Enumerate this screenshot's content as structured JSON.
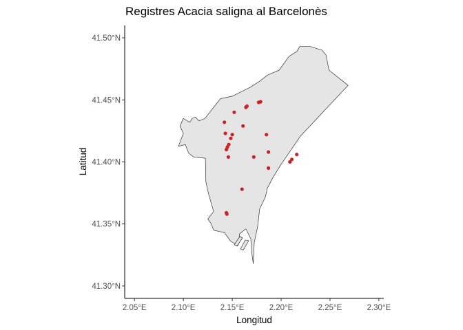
{
  "chart_data": {
    "type": "scatter",
    "title": "Registres Acacia saligna al Barcelonès",
    "xlabel": "Longitud",
    "ylabel": "Latitud",
    "xlim": [
      2.04,
      2.305
    ],
    "ylim": [
      41.29,
      41.51
    ],
    "x_ticks": [
      2.05,
      2.1,
      2.15,
      2.2,
      2.25,
      2.3
    ],
    "x_tick_labels": [
      "2.05°E",
      "2.10°E",
      "2.15°E",
      "2.20°E",
      "2.25°E",
      "2.30°E"
    ],
    "y_ticks": [
      41.3,
      41.35,
      41.4,
      41.45,
      41.5
    ],
    "y_tick_labels": [
      "41.30°N",
      "41.35°N",
      "41.40°N",
      "41.45°N",
      "41.50°N"
    ],
    "grid": false,
    "region_fill": "#e5e5e5",
    "region_outline": "#333333",
    "point_color": "#cc2222",
    "region_outline_lonlat": [
      [
        2.2685,
        41.4617
      ],
      [
        2.22,
        41.421
      ],
      [
        2.2,
        41.398
      ],
      [
        2.192,
        41.388
      ],
      [
        2.186,
        41.379
      ],
      [
        2.184,
        41.372
      ],
      [
        2.178,
        41.362
      ],
      [
        2.176,
        41.348
      ],
      [
        2.1725,
        41.335
      ],
      [
        2.1715,
        41.318
      ],
      [
        2.17,
        41.326
      ],
      [
        2.169,
        41.338
      ],
      [
        2.164,
        41.346
      ],
      [
        2.1575,
        41.342
      ],
      [
        2.156,
        41.3325
      ],
      [
        2.1485,
        41.336
      ],
      [
        2.142,
        41.343
      ],
      [
        2.131,
        41.345
      ],
      [
        2.1285,
        41.35
      ],
      [
        2.125,
        41.354
      ],
      [
        2.131,
        41.36
      ],
      [
        2.1255,
        41.375
      ],
      [
        2.123,
        41.384
      ],
      [
        2.1225,
        41.403
      ],
      [
        2.1105,
        41.404
      ],
      [
        2.1055,
        41.407
      ],
      [
        2.102,
        41.414
      ],
      [
        2.095,
        41.4125
      ],
      [
        2.1,
        41.423
      ],
      [
        2.0965,
        41.429
      ],
      [
        2.1,
        41.435
      ],
      [
        2.1065,
        41.432
      ],
      [
        2.109,
        41.435
      ],
      [
        2.1125,
        41.436
      ],
      [
        2.116,
        41.433
      ],
      [
        2.122,
        41.435
      ],
      [
        2.138,
        41.451
      ],
      [
        2.15,
        41.453
      ],
      [
        2.168,
        41.46
      ],
      [
        2.178,
        41.465
      ],
      [
        2.186,
        41.47
      ],
      [
        2.198,
        41.474
      ],
      [
        2.208,
        41.485
      ],
      [
        2.216,
        41.489
      ],
      [
        2.219,
        41.493
      ],
      [
        2.23,
        41.493
      ],
      [
        2.242,
        41.49
      ],
      [
        2.246,
        41.486
      ],
      [
        2.249,
        41.474
      ],
      [
        2.2685,
        41.4617
      ]
    ],
    "series": [
      {
        "x": [
          2.177,
          2.179,
          2.165,
          2.164,
          2.152,
          2.161,
          2.142,
          2.143,
          2.15,
          2.1485,
          2.1465,
          2.145,
          2.144,
          2.146,
          2.185,
          2.187,
          2.172,
          2.187,
          2.216,
          2.211,
          2.209,
          2.16,
          2.144,
          2.1445
        ],
        "y": [
          41.448,
          41.4485,
          41.445,
          41.444,
          41.44,
          41.429,
          41.432,
          41.423,
          41.422,
          41.419,
          41.414,
          41.412,
          41.41,
          41.404,
          41.422,
          41.408,
          41.404,
          41.395,
          41.406,
          41.402,
          41.4,
          41.378,
          41.359,
          41.358
        ]
      }
    ]
  }
}
